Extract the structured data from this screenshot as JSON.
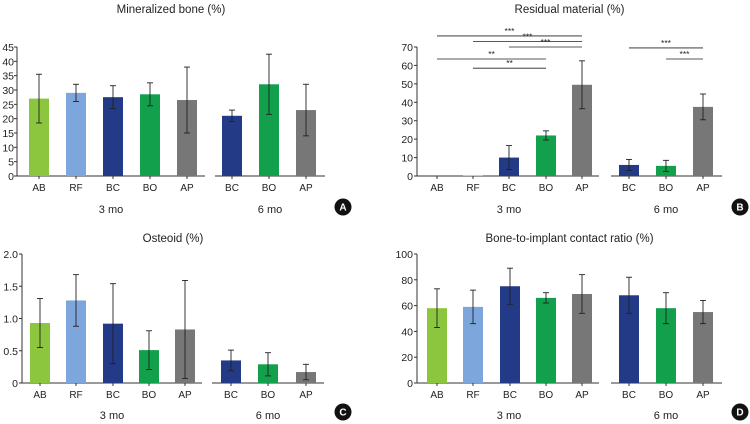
{
  "colors": {
    "AB": "#8cc63e",
    "RF": "#7ca6dc",
    "BC": "#233a86",
    "BO": "#12a04c",
    "AP": "#777777"
  },
  "chart_data": [
    {
      "id": "A",
      "type": "bar",
      "title": "Mineralized bone (%)",
      "ylim": [
        0,
        45
      ],
      "yticks": [
        "0",
        "5",
        "10",
        "15",
        "20",
        "25",
        "30",
        "35",
        "40",
        "45"
      ],
      "groups": [
        {
          "label": "3 mo",
          "categories": [
            "AB",
            "RF",
            "BC",
            "BO",
            "AP"
          ],
          "values": [
            27,
            29,
            27.5,
            28.5,
            26.5
          ],
          "errors": [
            8.5,
            3,
            4,
            4,
            11.5
          ]
        },
        {
          "label": "6 mo",
          "categories": [
            "BC",
            "BO",
            "AP"
          ],
          "values": [
            21,
            32,
            23
          ],
          "errors": [
            2,
            10.5,
            9
          ]
        }
      ],
      "badge": "A",
      "significance": []
    },
    {
      "id": "B",
      "type": "bar",
      "title": "Residual material (%)",
      "ylim": [
        0,
        70
      ],
      "yticks": [
        "0",
        "10",
        "20",
        "30",
        "40",
        "50",
        "60",
        "70"
      ],
      "groups": [
        {
          "label": "3 mo",
          "categories": [
            "AB",
            "RF",
            "BC",
            "BO",
            "AP"
          ],
          "values": [
            0,
            0.3,
            10,
            22,
            49.5
          ],
          "errors": [
            0,
            0,
            6.5,
            2.5,
            13
          ]
        },
        {
          "label": "6 mo",
          "categories": [
            "BC",
            "BO",
            "AP"
          ],
          "values": [
            6,
            5.5,
            37.5
          ],
          "errors": [
            3,
            3,
            7
          ]
        }
      ],
      "badge": "B",
      "significance": [
        {
          "group": 0,
          "from": 0,
          "to": 4,
          "level": 76,
          "label": "***"
        },
        {
          "group": 0,
          "from": 1,
          "to": 4,
          "level": 73,
          "label": "***"
        },
        {
          "group": 0,
          "from": 2,
          "to": 4,
          "level": 70,
          "label": "***"
        },
        {
          "group": 0,
          "from": 0,
          "to": 3,
          "level": 63.5,
          "label": "**"
        },
        {
          "group": 0,
          "from": 1,
          "to": 3,
          "level": 58.5,
          "label": "**"
        },
        {
          "group": 1,
          "from": 0,
          "to": 2,
          "level": 69.5,
          "label": "***"
        },
        {
          "group": 1,
          "from": 1,
          "to": 2,
          "level": 63.5,
          "label": "***"
        }
      ]
    },
    {
      "id": "C",
      "type": "bar",
      "title": "Osteoid (%)",
      "ylim": [
        0,
        2.0
      ],
      "yticks": [
        "0",
        "0.5",
        "1.0",
        "1.5",
        "2.0"
      ],
      "groups": [
        {
          "label": "3 mo",
          "categories": [
            "AB",
            "RF",
            "BC",
            "BO",
            "AP"
          ],
          "values": [
            0.93,
            1.28,
            0.92,
            0.51,
            0.83
          ],
          "errors": [
            0.38,
            0.4,
            0.62,
            0.3,
            0.76
          ]
        },
        {
          "label": "6 mo",
          "categories": [
            "BC",
            "BO",
            "AP"
          ],
          "values": [
            0.35,
            0.29,
            0.17
          ],
          "errors": [
            0.16,
            0.18,
            0.12
          ]
        }
      ],
      "badge": "C",
      "significance": []
    },
    {
      "id": "D",
      "type": "bar",
      "title": "Bone-to-implant contact ratio (%)",
      "ylim": [
        0,
        100
      ],
      "yticks": [
        "0",
        "20",
        "40",
        "60",
        "80",
        "100"
      ],
      "groups": [
        {
          "label": "3 mo",
          "categories": [
            "AB",
            "RF",
            "BC",
            "BO",
            "AP"
          ],
          "values": [
            58,
            59,
            75,
            66,
            69
          ],
          "errors": [
            15,
            13,
            14,
            4,
            15
          ]
        },
        {
          "label": "6 mo",
          "categories": [
            "BC",
            "BO",
            "AP"
          ],
          "values": [
            68,
            58,
            55
          ],
          "errors": [
            14,
            12,
            9
          ]
        }
      ],
      "badge": "D",
      "significance": []
    }
  ]
}
